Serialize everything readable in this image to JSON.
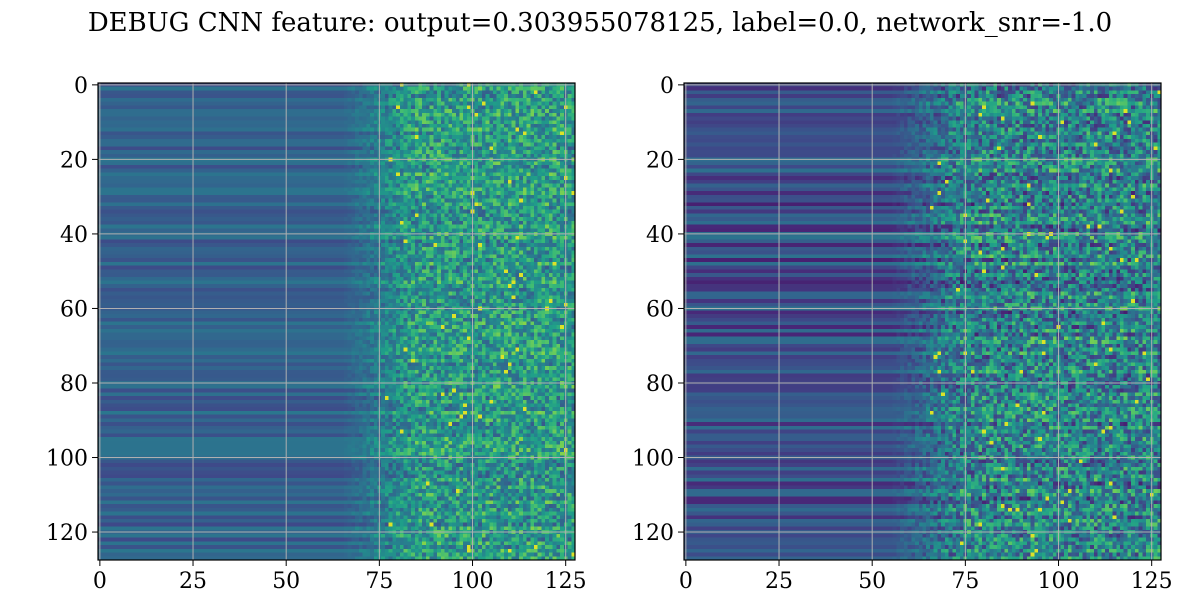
{
  "title": "DEBUG CNN feature: output=0.303955078125, label=0.0, network_snr=-1.0",
  "chart_data": [
    {
      "type": "heatmap",
      "panel": "left",
      "shape": [
        128,
        128
      ],
      "colormap": "viridis",
      "grid": true,
      "xticks": [
        0,
        25,
        50,
        75,
        100,
        125
      ],
      "yticks": [
        0,
        20,
        40,
        60,
        80,
        100,
        120
      ],
      "xlim": [
        -0.5,
        127.5
      ],
      "ylim": [
        127.5,
        -0.5
      ]
    },
    {
      "type": "heatmap",
      "panel": "right",
      "shape": [
        128,
        128
      ],
      "colormap": "viridis",
      "grid": true,
      "xticks": [
        0,
        25,
        50,
        75,
        100,
        125
      ],
      "yticks": [
        0,
        20,
        40,
        60,
        80,
        100,
        120
      ],
      "xlim": [
        -0.5,
        127.5
      ],
      "ylim": [
        127.5,
        -0.5
      ]
    }
  ]
}
